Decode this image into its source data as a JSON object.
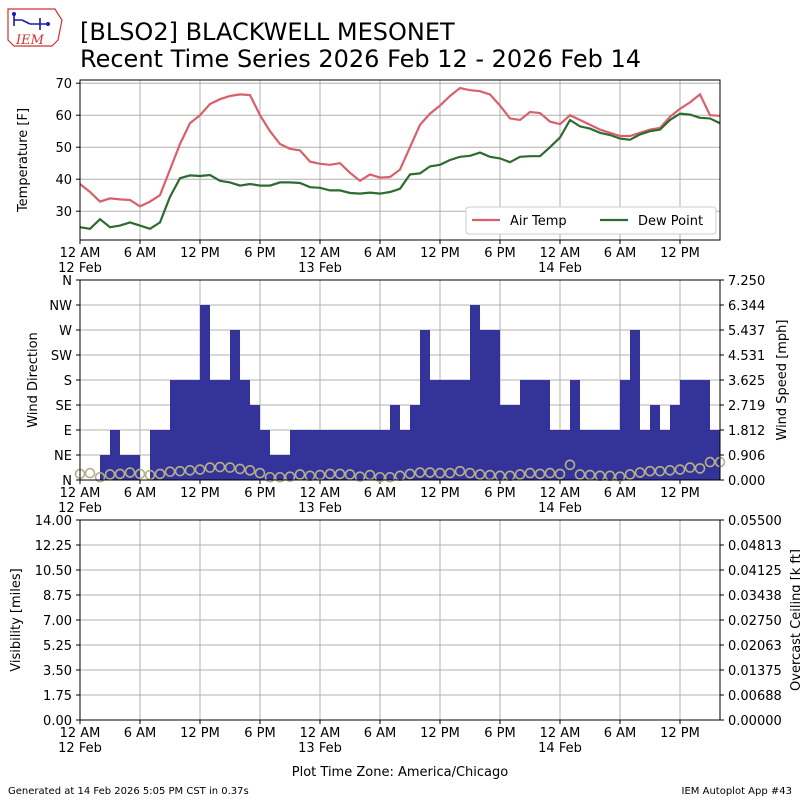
{
  "header": {
    "title_line1": "[BLSO2] BLACKWELL MESONET",
    "title_line2": "Recent Time Series 2026 Feb 12 - 2026 Feb 14",
    "logo_text": "IEM"
  },
  "footer": {
    "generated": "Generated at 14 Feb 2026 5:05 PM CST in 0.37s",
    "app": "IEM Autoplot App #43",
    "timezone_label": "Plot Time Zone: America/Chicago"
  },
  "x_axis": {
    "ticks": [
      {
        "h": 0,
        "line1": "12 AM",
        "line2": "12 Feb"
      },
      {
        "h": 6,
        "line1": "6 AM",
        "line2": ""
      },
      {
        "h": 12,
        "line1": "12 PM",
        "line2": ""
      },
      {
        "h": 18,
        "line1": "6 PM",
        "line2": ""
      },
      {
        "h": 24,
        "line1": "12 AM",
        "line2": "13 Feb"
      },
      {
        "h": 30,
        "line1": "6 AM",
        "line2": ""
      },
      {
        "h": 36,
        "line1": "12 PM",
        "line2": ""
      },
      {
        "h": 42,
        "line1": "6 PM",
        "line2": ""
      },
      {
        "h": 48,
        "line1": "12 AM",
        "line2": "14 Feb"
      },
      {
        "h": 54,
        "line1": "6 AM",
        "line2": ""
      },
      {
        "h": 60,
        "line1": "12 PM",
        "line2": ""
      }
    ],
    "xlim_hours": [
      0,
      64
    ]
  },
  "chart_data": [
    {
      "type": "line",
      "ylabel": "Temperature [F]",
      "ylim": [
        21,
        71
      ],
      "yticks": [
        30,
        40,
        50,
        60,
        70
      ],
      "legend": [
        "Air Temp",
        "Dew Point"
      ],
      "legend_position": "lower-right",
      "grid": true,
      "series": [
        {
          "name": "Air Temp",
          "color": "#d9606b",
          "x_hours": [
            0,
            1,
            2,
            3,
            4,
            5,
            6,
            7,
            8,
            9,
            10,
            11,
            12,
            13,
            14,
            15,
            16,
            17,
            18,
            19,
            20,
            21,
            22,
            23,
            24,
            25,
            26,
            27,
            28,
            29,
            30,
            31,
            32,
            33,
            34,
            35,
            36,
            37,
            38,
            39,
            40,
            41,
            42,
            43,
            44,
            45,
            46,
            47,
            48,
            49,
            50,
            51,
            52,
            53,
            54,
            55,
            56,
            57,
            58,
            59,
            60,
            61,
            62,
            63,
            64
          ],
          "values": [
            38.5,
            36,
            33,
            34,
            33.7,
            33.5,
            31.5,
            33,
            35,
            43,
            51,
            57.5,
            60,
            63.5,
            65,
            66,
            66.5,
            66.3,
            60,
            55,
            51,
            49.5,
            49,
            45.5,
            44.8,
            44.5,
            45,
            42,
            39.5,
            41.5,
            40.5,
            40.7,
            43,
            50,
            57,
            60.5,
            63,
            66,
            68.5,
            67.8,
            67.5,
            66.5,
            63,
            59,
            58.5,
            61,
            60.7,
            58,
            57.2,
            60,
            58.5,
            57,
            55.5,
            54.5,
            53.5,
            53.5,
            54.5,
            55.5,
            56,
            59.5,
            62,
            64,
            66.5,
            60,
            59.8
          ]
        },
        {
          "name": "Dew Point",
          "color": "#2e6b30",
          "x_hours": [
            0,
            1,
            2,
            3,
            4,
            5,
            6,
            7,
            8,
            9,
            10,
            11,
            12,
            13,
            14,
            15,
            16,
            17,
            18,
            19,
            20,
            21,
            22,
            23,
            24,
            25,
            26,
            27,
            28,
            29,
            30,
            31,
            32,
            33,
            34,
            35,
            36,
            37,
            38,
            39,
            40,
            41,
            42,
            43,
            44,
            45,
            46,
            47,
            48,
            49,
            50,
            51,
            52,
            53,
            54,
            55,
            56,
            57,
            58,
            59,
            60,
            61,
            62,
            63,
            64
          ],
          "values": [
            25,
            24.5,
            27.5,
            25,
            25.5,
            26.5,
            25.5,
            24.5,
            26.5,
            34.5,
            40.3,
            41.2,
            41,
            41.3,
            39.5,
            39,
            38,
            38.5,
            38,
            38,
            39,
            39,
            38.8,
            37.5,
            37.3,
            36.5,
            36.5,
            35.7,
            35.5,
            35.8,
            35.5,
            36,
            37,
            41.5,
            41.8,
            44,
            44.5,
            46,
            47,
            47.3,
            48.3,
            47,
            46.5,
            45.3,
            47,
            47.2,
            47.2,
            50,
            53,
            58.5,
            56.5,
            55.8,
            54.5,
            53.8,
            52.7,
            52.3,
            54,
            55,
            55.5,
            58.5,
            60.5,
            60.2,
            59.2,
            59,
            57.5
          ]
        }
      ]
    },
    {
      "type": "bar",
      "ylabel": "Wind Direction",
      "ylabel_right": "Wind Speed [mph]",
      "categories_y": [
        "N",
        "NE",
        "E",
        "SE",
        "S",
        "SW",
        "W",
        "NW",
        "N"
      ],
      "direction_ylim_deg": [
        0,
        360
      ],
      "speed_ylim": [
        0,
        7.25
      ],
      "speed_ticks": [
        "0.000",
        "0.906",
        "1.812",
        "2.719",
        "3.625",
        "4.531",
        "5.437",
        "6.344",
        "7.250"
      ],
      "bar_color": "#333399",
      "grid": true,
      "direction_bars": {
        "x_start_hours": 0,
        "bin_hours": 1,
        "degrees": [
          0,
          0,
          45,
          90,
          45,
          45,
          0,
          90,
          90,
          180,
          180,
          180,
          315,
          180,
          180,
          270,
          180,
          135,
          90,
          45,
          45,
          90,
          90,
          90,
          90,
          90,
          90,
          90,
          90,
          90,
          90,
          135,
          90,
          135,
          270,
          180,
          180,
          180,
          180,
          315,
          270,
          270,
          135,
          135,
          180,
          180,
          180,
          90,
          90,
          180,
          90,
          90,
          90,
          90,
          180,
          270,
          90,
          135,
          90,
          135,
          180,
          180,
          180,
          90,
          180
        ]
      },
      "wind_speed_markers": {
        "x_hours": [
          0,
          1,
          2,
          3,
          4,
          5,
          6,
          7,
          8,
          9,
          10,
          11,
          12,
          13,
          14,
          15,
          16,
          17,
          18,
          19,
          20,
          21,
          22,
          23,
          24,
          25,
          26,
          27,
          28,
          29,
          30,
          31,
          32,
          33,
          34,
          35,
          36,
          37,
          38,
          39,
          40,
          41,
          42,
          43,
          44,
          45,
          46,
          47,
          48,
          49,
          50,
          51,
          52,
          53,
          54,
          55,
          56,
          57,
          58,
          59,
          60,
          61,
          62,
          63,
          64
        ],
        "values": [
          0.22,
          0.25,
          0.1,
          0.2,
          0.22,
          0.27,
          0.22,
          0.18,
          0.22,
          0.3,
          0.32,
          0.35,
          0.38,
          0.45,
          0.47,
          0.45,
          0.4,
          0.35,
          0.25,
          0.1,
          0.1,
          0.12,
          0.2,
          0.15,
          0.18,
          0.22,
          0.22,
          0.2,
          0.12,
          0.18,
          0.1,
          0.1,
          0.15,
          0.22,
          0.27,
          0.27,
          0.25,
          0.25,
          0.32,
          0.25,
          0.2,
          0.18,
          0.15,
          0.15,
          0.2,
          0.25,
          0.22,
          0.25,
          0.22,
          0.55,
          0.2,
          0.18,
          0.15,
          0.15,
          0.12,
          0.2,
          0.27,
          0.32,
          0.32,
          0.35,
          0.38,
          0.45,
          0.42,
          0.65,
          0.65
        ]
      }
    },
    {
      "type": "line",
      "ylabel": "Visibility [miles]",
      "ylabel_right": "Overcast Ceiling [k ft]",
      "ylabel_right_color": "#008000",
      "ylim": [
        0,
        14
      ],
      "yticks": [
        "0.00",
        "1.75",
        "3.50",
        "5.25",
        "7.00",
        "8.75",
        "10.50",
        "12.25",
        "14.00"
      ],
      "ylim_right": [
        0,
        0.055
      ],
      "yticks_right": [
        "0.00000",
        "0.00688",
        "0.01375",
        "0.02063",
        "0.02750",
        "0.03438",
        "0.04125",
        "0.04813",
        "0.05500"
      ],
      "grid": true,
      "series": []
    }
  ]
}
